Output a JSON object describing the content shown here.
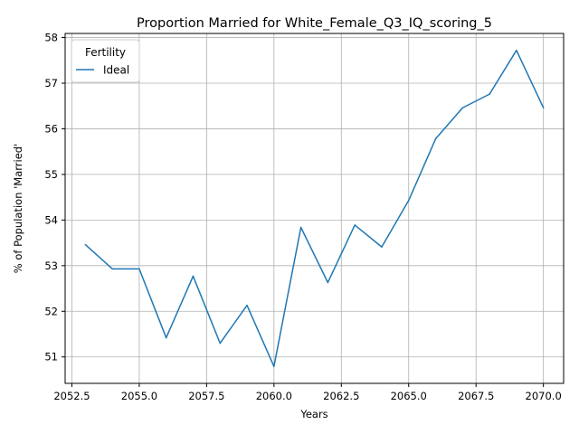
{
  "chart_data": {
    "type": "line",
    "title": "Proportion Married for White_Female_Q3_IQ_scoring_5",
    "xlabel": "Years",
    "ylabel": "% of Population 'Married'",
    "xlim": [
      2052.25,
      2070.75
    ],
    "ylim": [
      50.42,
      58.09
    ],
    "x_ticks": [
      2052.5,
      2055.0,
      2057.5,
      2060.0,
      2062.5,
      2065.0,
      2067.5,
      2070.0
    ],
    "x_tick_labels": [
      "2052.5",
      "2055.0",
      "2057.5",
      "2060.0",
      "2062.5",
      "2065.0",
      "2067.5",
      "2070.0"
    ],
    "y_ticks": [
      51,
      52,
      53,
      54,
      55,
      56,
      57,
      58
    ],
    "y_tick_labels": [
      "51",
      "52",
      "53",
      "54",
      "55",
      "56",
      "57",
      "58"
    ],
    "grid": true,
    "legend": {
      "title": "Fertility",
      "placement": "top-left"
    },
    "series": [
      {
        "name": "Ideal",
        "color": "#1f77b4",
        "x": [
          2053,
          2054,
          2055,
          2056,
          2057,
          2058,
          2059,
          2060,
          2061,
          2062,
          2063,
          2064,
          2065,
          2066,
          2067,
          2068,
          2069,
          2070
        ],
        "y": [
          53.46,
          52.93,
          52.93,
          51.42,
          52.77,
          51.3,
          52.13,
          50.79,
          53.84,
          52.63,
          53.89,
          53.41,
          54.43,
          55.78,
          56.46,
          56.76,
          57.72,
          56.46
        ]
      }
    ]
  }
}
